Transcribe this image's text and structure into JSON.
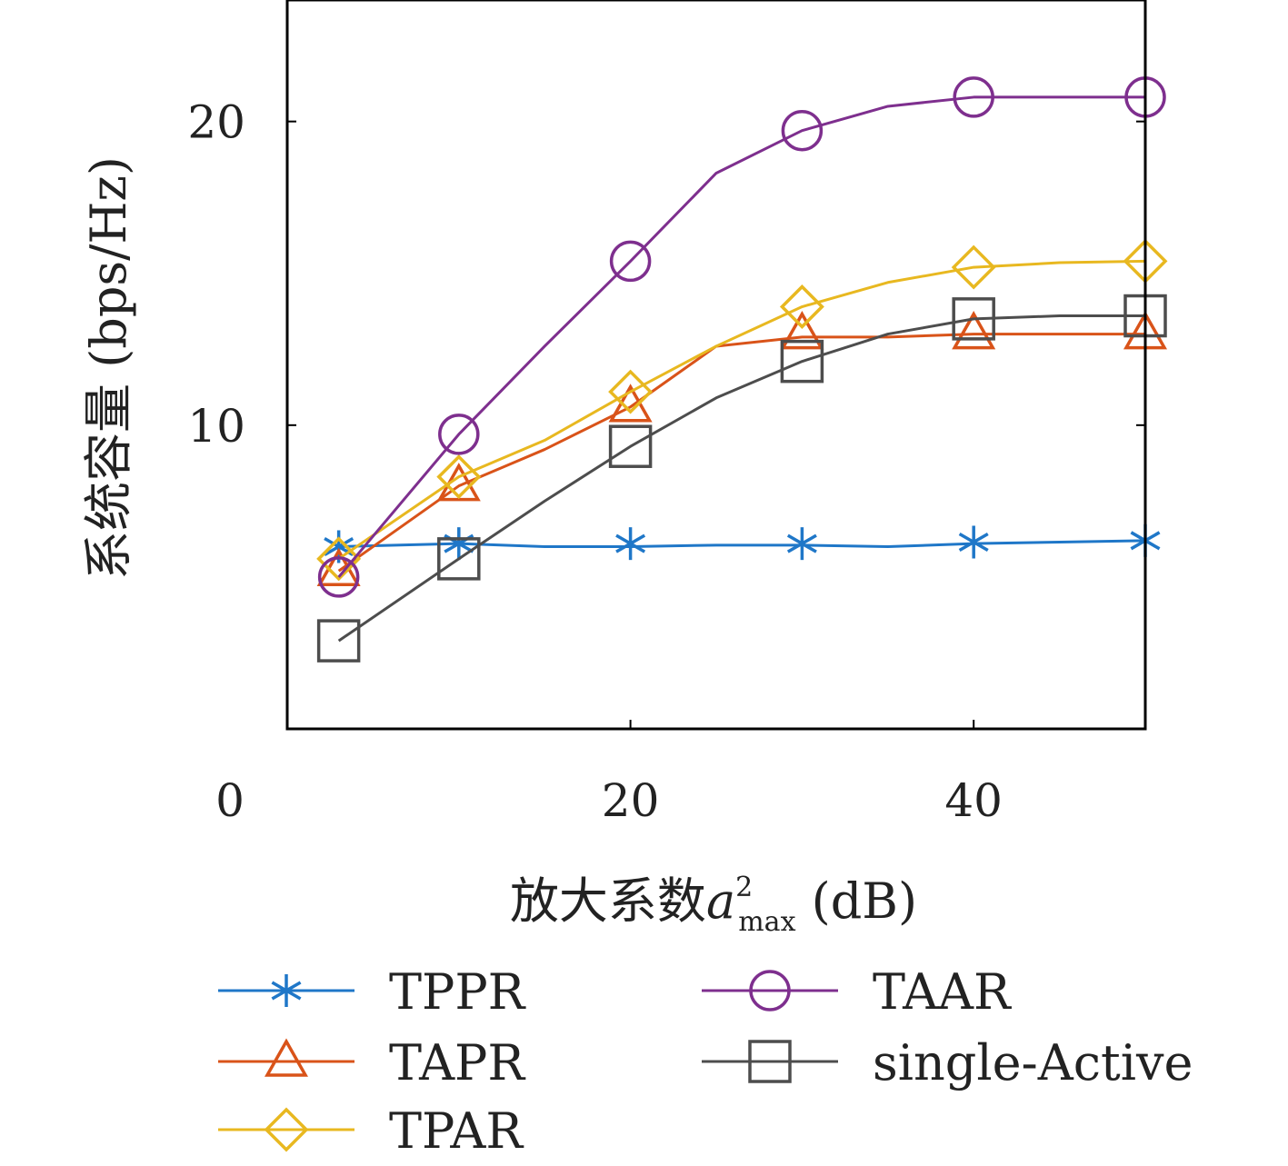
{
  "chart_data": {
    "type": "line",
    "xlabel": "放大系数",
    "xlabel_symbol": "a",
    "xlabel_sup": "2",
    "xlabel_sub": "max",
    "xlabel_unit": "(dB)",
    "ylabel": "系统容量 (bps/Hz)",
    "xlim": [
      0,
      50
    ],
    "ylim": [
      0,
      24
    ],
    "x_ticks": [
      0,
      20,
      40
    ],
    "y_ticks": [
      10,
      20
    ],
    "x_tick_labels": [
      "0",
      "20",
      "40"
    ],
    "y_tick_labels": [
      "10",
      "20"
    ],
    "grid": false,
    "legend_position": "bottom",
    "x": [
      3,
      10,
      20,
      30,
      40,
      50
    ],
    "series": [
      {
        "name": "TPPR",
        "color": "#1f77c8",
        "marker": "asterisk",
        "values": [
          6.0,
          6.1,
          6.1,
          6.1,
          6.15,
          6.2
        ],
        "line_x": [
          3,
          10,
          15,
          20,
          25,
          30,
          35,
          40,
          45,
          50
        ],
        "line_y": [
          6.0,
          6.1,
          6.0,
          6.0,
          6.05,
          6.05,
          6.0,
          6.1,
          6.15,
          6.2
        ]
      },
      {
        "name": "TAPR",
        "color": "#d95319",
        "marker": "triangle",
        "values": [
          5.2,
          8.0,
          10.6,
          13.0,
          13.0,
          13.0
        ],
        "line_x": [
          3,
          10,
          15,
          20,
          25,
          30,
          35,
          40,
          45,
          50
        ],
        "line_y": [
          5.2,
          8.0,
          9.2,
          10.6,
          12.6,
          12.9,
          12.9,
          13.0,
          13.0,
          13.0
        ]
      },
      {
        "name": "TPAR",
        "color": "#e8b820",
        "marker": "diamond",
        "values": [
          5.6,
          8.3,
          11.1,
          13.9,
          15.2,
          15.4
        ],
        "line_x": [
          3,
          10,
          15,
          20,
          25,
          30,
          35,
          40,
          45,
          50
        ],
        "line_y": [
          5.6,
          8.3,
          9.5,
          11.1,
          12.6,
          13.9,
          14.7,
          15.2,
          15.35,
          15.4
        ]
      },
      {
        "name": "TAAR",
        "color": "#7e2f8e",
        "marker": "circle",
        "values": [
          5.0,
          9.7,
          15.4,
          19.7,
          20.8,
          20.8
        ],
        "line_x": [
          3,
          10,
          15,
          20,
          25,
          30,
          35,
          40,
          45,
          50
        ],
        "line_y": [
          5.0,
          9.7,
          12.6,
          15.4,
          18.3,
          19.7,
          20.5,
          20.8,
          20.8,
          20.8
        ]
      },
      {
        "name": "single-Active",
        "color": "#4d4d4d",
        "marker": "square",
        "values": [
          2.9,
          5.6,
          9.3,
          12.1,
          13.5,
          13.6
        ],
        "line_x": [
          3,
          10,
          15,
          20,
          25,
          30,
          35,
          40,
          45,
          50
        ],
        "line_y": [
          2.9,
          5.6,
          7.5,
          9.3,
          10.9,
          12.1,
          13.0,
          13.5,
          13.6,
          13.6
        ]
      }
    ]
  }
}
